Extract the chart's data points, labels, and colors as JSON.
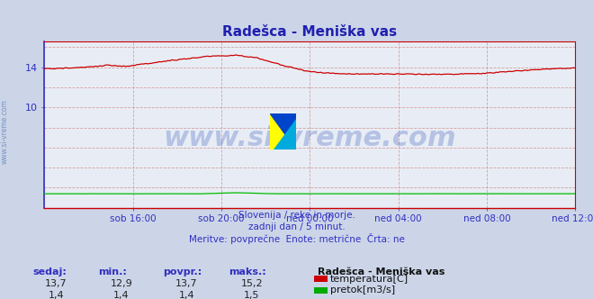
{
  "title": "Radešca - Meniška vas",
  "bg_color": "#ccd5e8",
  "plot_bg_color": "#e8edf5",
  "grid_color_h": "#d4a0a0",
  "grid_color_v": "#d4a0a0",
  "title_color": "#2020b0",
  "tick_color": "#3030c0",
  "watermark_text": "www.si-vreme.com",
  "watermark_color": "#3355bb",
  "watermark_alpha": 0.28,
  "watermark_fontsize": 22,
  "subtitle_lines": [
    "Slovenija / reke in morje.",
    "zadnji dan / 5 minut.",
    "Meritve: povprečne  Enote: metrične  Črta: ne"
  ],
  "footer_labels": [
    "sedaj:",
    "min.:",
    "povpr.:",
    "maks.:"
  ],
  "footer_row1": [
    "13,7",
    "12,9",
    "13,7",
    "15,2"
  ],
  "footer_row2": [
    "1,4",
    "1,4",
    "1,4",
    "1,5"
  ],
  "footer_station": "Radešca - Meniška vas",
  "footer_legend": [
    {
      "color": "#cc0000",
      "label": "temperatura[C]"
    },
    {
      "color": "#00aa00",
      "label": "pretok[m3/s]"
    }
  ],
  "ylim": [
    0,
    16.533
  ],
  "ytick_vals": [
    10,
    14
  ],
  "ytick_labels": [
    "10",
    "14"
  ],
  "xlim": [
    0,
    288
  ],
  "xtick_positions": [
    48,
    96,
    144,
    192,
    240,
    288
  ],
  "xtick_labels": [
    "sob 16:00",
    "sob 20:00",
    "ned 00:00",
    "ned 04:00",
    "ned 08:00",
    "ned 12:00"
  ],
  "grid_x_positions": [
    0,
    48,
    96,
    144,
    192,
    240,
    288
  ],
  "grid_y_positions": [
    2,
    4,
    6,
    8,
    10,
    12,
    14,
    16
  ],
  "temp_color": "#cc0000",
  "flow_color": "#00bb00",
  "left_spine_color": "#3030c0",
  "bottom_spine_color": "#cc0000",
  "right_spine_color": "#cc0000",
  "top_spine_color": "#cc0000",
  "left_label": "www.si-vreme.com",
  "left_label_color": "#6688bb",
  "logo_yellow": "#ffff00",
  "logo_blue1": "#0044cc",
  "logo_cyan": "#00aadd"
}
